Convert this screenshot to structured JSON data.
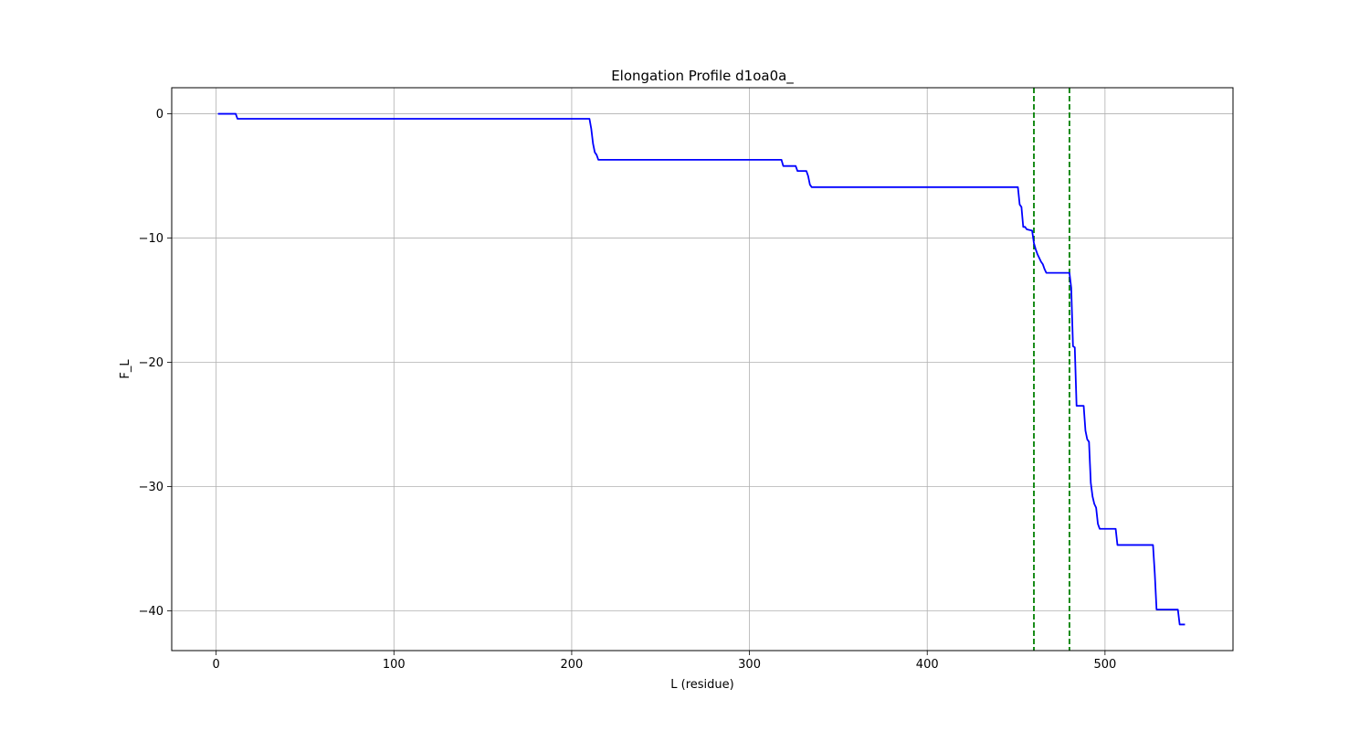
{
  "chart_data": {
    "type": "line",
    "title": "Elongation Profile d1oa0a_",
    "xlabel": "L (residue)",
    "ylabel": "F_L",
    "xlim": [
      -25,
      572
    ],
    "ylim": [
      -43.2,
      2.1
    ],
    "xticks": [
      0,
      100,
      200,
      300,
      400,
      500
    ],
    "yticks": [
      0,
      -10,
      -20,
      -30,
      -40
    ],
    "xtick_labels": [
      "0",
      "100",
      "200",
      "300",
      "400",
      "500"
    ],
    "ytick_labels": [
      "0",
      "−10",
      "−20",
      "−30",
      "−40"
    ],
    "grid": true,
    "series": [
      {
        "color": "#0000ff",
        "x": [
          1,
          11,
          12,
          210,
          211,
          212,
          213,
          214,
          215,
          216,
          217,
          318,
          319,
          326,
          327,
          332,
          333,
          334,
          335,
          451,
          452,
          453,
          454,
          455,
          456,
          459,
          460,
          461,
          462,
          463,
          464,
          465,
          466,
          467,
          468,
          469,
          470,
          479,
          480,
          481,
          482,
          483,
          484,
          485,
          486,
          488,
          489,
          490,
          491,
          492,
          493,
          494,
          495,
          496,
          497,
          498,
          499,
          500,
          506,
          507,
          527,
          528,
          529,
          530,
          541,
          542,
          545
        ],
        "y": [
          0,
          0,
          -0.4,
          -0.4,
          -1.2,
          -2.4,
          -3.1,
          -3.3,
          -3.7,
          -3.7,
          -3.7,
          -3.7,
          -4.2,
          -4.2,
          -4.6,
          -4.6,
          -5.0,
          -5.7,
          -5.9,
          -5.9,
          -7.3,
          -7.5,
          -9.1,
          -9.1,
          -9.3,
          -9.4,
          -10.4,
          -10.9,
          -11.3,
          -11.6,
          -11.9,
          -12.1,
          -12.5,
          -12.8,
          -12.8,
          -12.8,
          -12.8,
          -12.8,
          -12.8,
          -14.0,
          -18.7,
          -18.8,
          -23.5,
          -23.5,
          -23.5,
          -23.5,
          -25.5,
          -26.2,
          -26.4,
          -29.7,
          -30.8,
          -31.4,
          -31.7,
          -33.0,
          -33.4,
          -33.4,
          -33.4,
          -33.4,
          -33.4,
          -34.7,
          -34.7,
          -37.0,
          -39.9,
          -39.9,
          -39.9,
          -41.1,
          -41.1
        ]
      }
    ],
    "vlines": [
      {
        "x": 460,
        "color": "#008000",
        "style": "dashed"
      },
      {
        "x": 480,
        "color": "#008000",
        "style": "dashed"
      }
    ]
  }
}
